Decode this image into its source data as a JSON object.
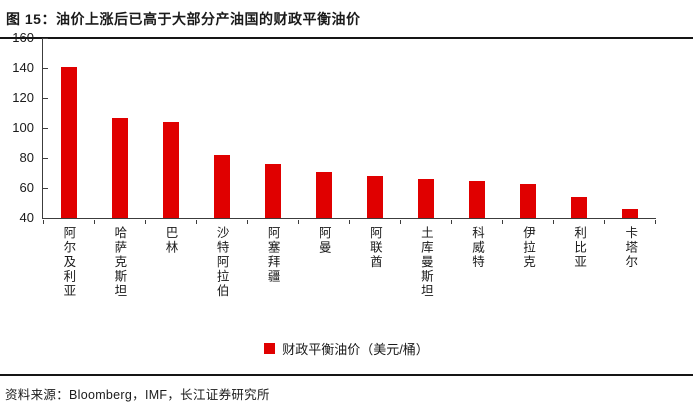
{
  "figure": {
    "title": "图 15：油价上涨后已高于大部分产油国的财政平衡油价"
  },
  "chart_data": {
    "type": "bar",
    "title": "图 15：油价上涨后已高于大部分产油国的财政平衡油价",
    "categories": [
      "阿尔及利亚",
      "哈萨克斯坦",
      "巴林",
      "沙特阿拉伯",
      "阿塞拜疆",
      "阿曼",
      "阿联酋",
      "土库曼斯坦",
      "科威特",
      "伊拉克",
      "利比亚",
      "卡塔尔"
    ],
    "values": [
      141,
      107,
      104,
      82,
      76,
      71,
      68,
      66,
      65,
      63,
      54,
      46
    ],
    "legend": "财政平衡油价（美元/桶）",
    "xlabel": "",
    "ylabel": "",
    "ylim": [
      40,
      160
    ],
    "yticks": [
      40,
      60,
      80,
      100,
      120,
      140,
      160
    ],
    "grid": false,
    "legend_position": "bottom-center",
    "bar_color": "#e00000",
    "axis_color": "#3c3c3c"
  },
  "footer": {
    "source": "资料来源：Bloomberg，IMF，长江证券研究所"
  }
}
